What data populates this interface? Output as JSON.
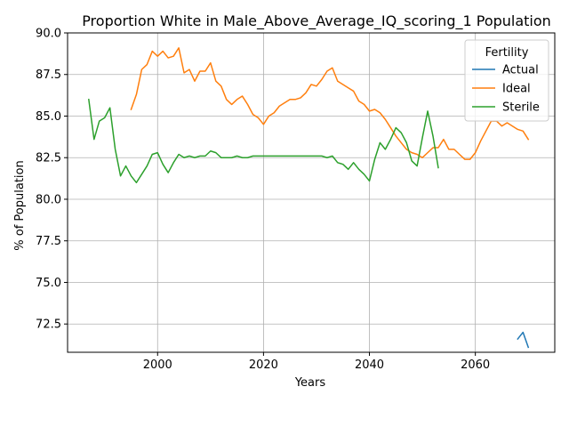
{
  "chart_data": {
    "type": "line",
    "title": "Proportion White in Male_Above_Average_IQ_scoring_1 Population",
    "xlabel": "Years",
    "ylabel": "% of Population",
    "xlim": [
      1983,
      2075
    ],
    "ylim": [
      70.8,
      90
    ],
    "xticks": [
      "2000",
      "2020",
      "2040",
      "2060"
    ],
    "xtick_values": [
      2000,
      2020,
      2040,
      2060
    ],
    "yticks": [
      "72.5",
      "75.0",
      "77.5",
      "80.0",
      "82.5",
      "85.0",
      "87.5",
      "90.0"
    ],
    "ytick_values": [
      72.5,
      75.0,
      77.5,
      80.0,
      82.5,
      85.0,
      87.5,
      90.0
    ],
    "grid": true,
    "legend": {
      "title": "Fertility",
      "placement": "top-right"
    },
    "series": [
      {
        "name": "Actual",
        "color": "#1f77b4",
        "x": [
          2068,
          2069,
          2070
        ],
        "y": [
          71.6,
          72.0,
          71.1
        ]
      },
      {
        "name": "Ideal",
        "color": "#ff7f0e",
        "x": [
          1995,
          1996,
          1997,
          1998,
          1999,
          2000,
          2001,
          2002,
          2003,
          2004,
          2005,
          2006,
          2007,
          2008,
          2009,
          2010,
          2011,
          2012,
          2013,
          2014,
          2015,
          2016,
          2017,
          2018,
          2019,
          2020,
          2021,
          2022,
          2023,
          2024,
          2025,
          2026,
          2027,
          2028,
          2029,
          2030,
          2031,
          2032,
          2033,
          2034,
          2035,
          2036,
          2037,
          2038,
          2039,
          2040,
          2041,
          2042,
          2043,
          2044,
          2045,
          2046,
          2047,
          2048,
          2049,
          2050,
          2051,
          2052,
          2053,
          2054,
          2055,
          2056,
          2057,
          2058,
          2059,
          2060,
          2061,
          2062,
          2063,
          2064,
          2065,
          2066,
          2067,
          2068,
          2069,
          2070
        ],
        "y": [
          85.4,
          86.3,
          87.8,
          88.1,
          88.9,
          88.6,
          88.9,
          88.5,
          88.6,
          89.1,
          87.6,
          87.8,
          87.1,
          87.7,
          87.7,
          88.2,
          87.1,
          86.8,
          86.0,
          85.7,
          86.0,
          86.2,
          85.7,
          85.1,
          84.9,
          84.5,
          85.0,
          85.2,
          85.6,
          85.8,
          86.0,
          86.0,
          86.1,
          86.4,
          86.9,
          86.8,
          87.2,
          87.7,
          87.9,
          87.1,
          86.9,
          86.7,
          86.5,
          85.9,
          85.7,
          85.3,
          85.4,
          85.2,
          84.8,
          84.3,
          83.8,
          83.4,
          83.0,
          82.8,
          82.7,
          82.5,
          82.8,
          83.1,
          83.1,
          83.6,
          83.0,
          83.0,
          82.7,
          82.4,
          82.4,
          82.8,
          83.5,
          84.1,
          84.7,
          84.7,
          84.4,
          84.6,
          84.4,
          84.2,
          84.1,
          83.6
        ]
      },
      {
        "name": "Sterile",
        "color": "#2ca02c",
        "x": [
          1987,
          1988,
          1989,
          1990,
          1991,
          1992,
          1993,
          1994,
          1995,
          1996,
          1997,
          1998,
          1999,
          2000,
          2001,
          2002,
          2003,
          2004,
          2005,
          2006,
          2007,
          2008,
          2009,
          2010,
          2011,
          2012,
          2013,
          2014,
          2015,
          2016,
          2017,
          2018,
          2019,
          2020,
          2021,
          2022,
          2023,
          2024,
          2025,
          2026,
          2027,
          2028,
          2029,
          2030,
          2031,
          2032,
          2033,
          2034,
          2035,
          2036,
          2037,
          2038,
          2039,
          2040,
          2041,
          2042,
          2043,
          2044,
          2045,
          2046,
          2047,
          2048,
          2049,
          2050,
          2051,
          2052,
          2053
        ],
        "y": [
          86.0,
          83.6,
          84.7,
          84.9,
          85.5,
          83.0,
          81.4,
          82.0,
          81.4,
          81.0,
          81.5,
          82.0,
          82.7,
          82.8,
          82.1,
          81.6,
          82.2,
          82.7,
          82.5,
          82.6,
          82.5,
          82.6,
          82.6,
          82.9,
          82.8,
          82.5,
          82.5,
          82.5,
          82.6,
          82.5,
          82.5,
          82.6,
          82.6,
          82.6,
          82.6,
          82.6,
          82.6,
          82.6,
          82.6,
          82.6,
          82.6,
          82.6,
          82.6,
          82.6,
          82.6,
          82.5,
          82.6,
          82.2,
          82.1,
          81.8,
          82.2,
          81.8,
          81.5,
          81.1,
          82.4,
          83.4,
          83.0,
          83.6,
          84.3,
          84.0,
          83.4,
          82.3,
          82.0,
          83.7,
          85.3,
          83.8,
          81.9
        ]
      }
    ]
  }
}
